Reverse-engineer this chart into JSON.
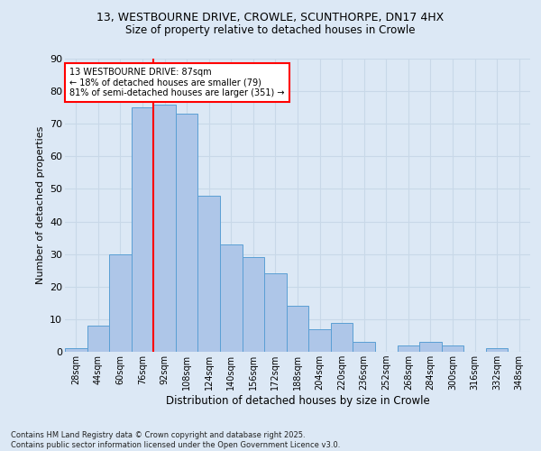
{
  "title_line1": "13, WESTBOURNE DRIVE, CROWLE, SCUNTHORPE, DN17 4HX",
  "title_line2": "Size of property relative to detached houses in Crowle",
  "xlabel": "Distribution of detached houses by size in Crowle",
  "ylabel": "Number of detached properties",
  "bins": [
    "28sqm",
    "44sqm",
    "60sqm",
    "76sqm",
    "92sqm",
    "108sqm",
    "124sqm",
    "140sqm",
    "156sqm",
    "172sqm",
    "188sqm",
    "204sqm",
    "220sqm",
    "236sqm",
    "252sqm",
    "268sqm",
    "284sqm",
    "300sqm",
    "316sqm",
    "332sqm",
    "348sqm"
  ],
  "values": [
    1,
    8,
    30,
    75,
    76,
    73,
    48,
    33,
    29,
    24,
    14,
    7,
    9,
    3,
    0,
    2,
    3,
    2,
    0,
    1,
    0
  ],
  "bar_color": "#aec6e8",
  "bar_edge_color": "#5a9fd4",
  "grid_color": "#c8d8e8",
  "background_color": "#dce8f5",
  "vline_x_index": 4,
  "vline_color": "red",
  "annotation_text": "13 WESTBOURNE DRIVE: 87sqm\n← 18% of detached houses are smaller (79)\n81% of semi-detached houses are larger (351) →",
  "annotation_box_color": "white",
  "annotation_box_edge": "red",
  "footnote": "Contains HM Land Registry data © Crown copyright and database right 2025.\nContains public sector information licensed under the Open Government Licence v3.0.",
  "ylim": [
    0,
    90
  ],
  "yticks": [
    0,
    10,
    20,
    30,
    40,
    50,
    60,
    70,
    80,
    90
  ]
}
